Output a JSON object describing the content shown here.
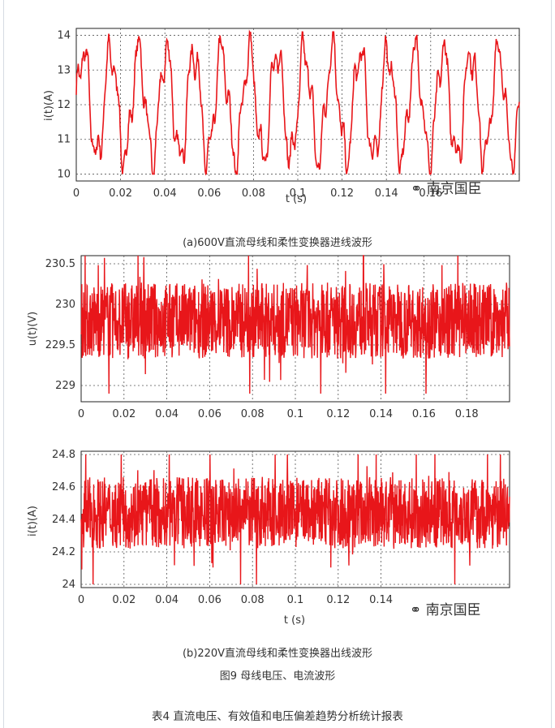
{
  "captions": {
    "a": "(a)600V直流母线和柔性变换器进线波形",
    "b": "(b)220V直流母线和柔性变换器出线波形",
    "figure": "图9 母线电压、电流波形",
    "table": "表4  直流电压、有效值和电压偏差趋势分析统计报表"
  },
  "watermark": "南京国臣",
  "chart_data": [
    {
      "type": "line",
      "xlabel": "t (s)",
      "ylabel": "i(t)(A)",
      "xlim": [
        0,
        0.2
      ],
      "ylim": [
        9.8,
        14.2
      ],
      "xticks": [
        "0",
        "0.02",
        "0.04",
        "0.06",
        "0.08",
        "0.1",
        "0.12",
        "0.14",
        "0.16"
      ],
      "xtick_values": [
        0,
        0.02,
        0.04,
        0.06,
        0.08,
        0.1,
        0.12,
        0.14,
        0.16
      ],
      "yticks": [
        "14",
        "13",
        "12",
        "11",
        "10"
      ],
      "ytick_values": [
        14,
        13,
        12,
        11,
        10
      ],
      "grid": true,
      "color": "#e8161a",
      "series": [
        {
          "pattern": "oscillation",
          "min": 10.0,
          "max": 14.1,
          "period": 0.0125,
          "mean": 12.0
        }
      ]
    },
    {
      "type": "line",
      "xlabel": "",
      "ylabel": "u(t)(V)",
      "xlim": [
        0,
        0.2
      ],
      "ylim": [
        228.8,
        230.6
      ],
      "xticks": [
        "0",
        "0.02",
        "0.04",
        "0.06",
        "0.08",
        "0.1",
        "0.12",
        "0.14",
        "0.16",
        "0.18"
      ],
      "xtick_values": [
        0,
        0.02,
        0.04,
        0.06,
        0.08,
        0.1,
        0.12,
        0.14,
        0.16,
        0.18
      ],
      "yticks": [
        "230.5",
        "230",
        "229.5",
        "229"
      ],
      "ytick_values": [
        230.5,
        230,
        229.5,
        229
      ],
      "grid": true,
      "color": "#e8161a",
      "series": [
        {
          "pattern": "noise",
          "mean": 229.8,
          "min": 228.9,
          "max": 230.6
        }
      ]
    },
    {
      "type": "line",
      "xlabel": "t (s)",
      "ylabel": "i(t)(A)",
      "xlim": [
        0,
        0.2
      ],
      "ylim": [
        23.98,
        24.82
      ],
      "xticks": [
        "0",
        "0.02",
        "0.04",
        "0.06",
        "0.08",
        "0.1",
        "0.12",
        "0.14"
      ],
      "xtick_values": [
        0,
        0.02,
        0.04,
        0.06,
        0.08,
        0.1,
        0.12,
        0.14
      ],
      "yticks": [
        "24.8",
        "24.6",
        "24.4",
        "24.2",
        "24"
      ],
      "ytick_values": [
        24.8,
        24.6,
        24.4,
        24.2,
        24
      ],
      "grid": true,
      "color": "#e8161a",
      "series": [
        {
          "pattern": "noise",
          "mean": 24.44,
          "min": 24.0,
          "max": 24.8
        }
      ]
    }
  ]
}
